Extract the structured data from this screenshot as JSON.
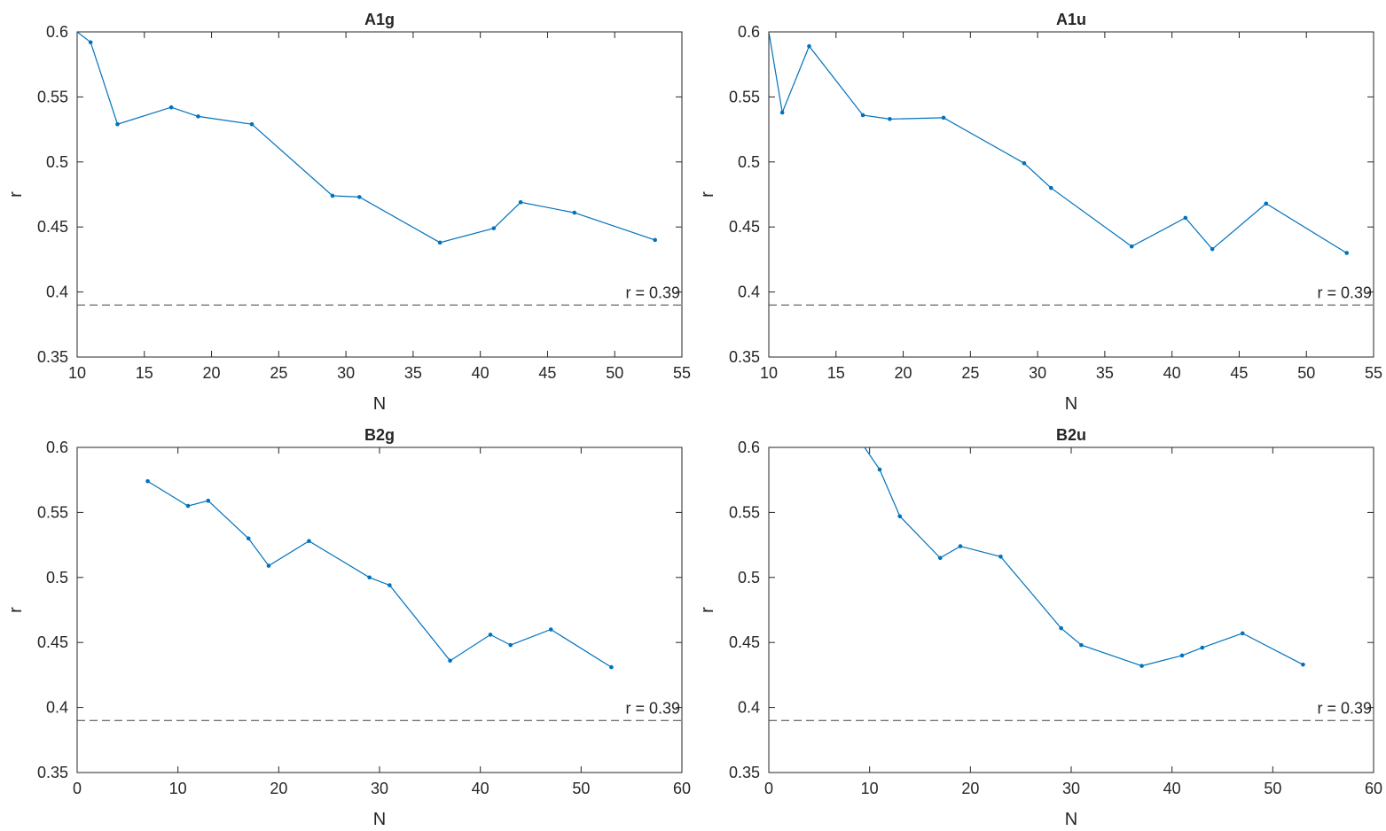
{
  "style": {
    "series_color": "#0072BD",
    "ref_line_color": "#404040"
  },
  "chart_data": [
    {
      "type": "line",
      "title": "A1g",
      "xlabel": "N",
      "ylabel": "r",
      "xlim": [
        10,
        55
      ],
      "ylim": [
        0.35,
        0.6
      ],
      "xticks": [
        10,
        15,
        20,
        25,
        30,
        35,
        40,
        45,
        50,
        55
      ],
      "yticks": [
        0.35,
        0.4,
        0.45,
        0.5,
        0.55,
        0.6
      ],
      "ytick_labels": [
        "0.35",
        "0.4",
        "0.45",
        "0.5",
        "0.55",
        "0.6"
      ],
      "grid": false,
      "x": [
        10,
        11,
        13,
        17,
        19,
        23,
        29,
        31,
        37,
        41,
        43,
        47,
        53
      ],
      "y": [
        0.6,
        0.592,
        0.529,
        0.542,
        0.535,
        0.529,
        0.474,
        0.473,
        0.438,
        0.449,
        0.469,
        0.461,
        0.44
      ],
      "markers": [
        false,
        true,
        true,
        true,
        true,
        true,
        true,
        true,
        true,
        true,
        true,
        true,
        true
      ],
      "reference_line": {
        "y": 0.39,
        "label": "r = 0.39"
      }
    },
    {
      "type": "line",
      "title": "A1u",
      "xlabel": "N",
      "ylabel": "r",
      "xlim": [
        10,
        55
      ],
      "ylim": [
        0.35,
        0.6
      ],
      "xticks": [
        10,
        15,
        20,
        25,
        30,
        35,
        40,
        45,
        50,
        55
      ],
      "yticks": [
        0.35,
        0.4,
        0.45,
        0.5,
        0.55,
        0.6
      ],
      "ytick_labels": [
        "0.35",
        "0.4",
        "0.45",
        "0.5",
        "0.55",
        "0.6"
      ],
      "grid": false,
      "x": [
        10,
        11,
        13,
        17,
        19,
        23,
        29,
        31,
        37,
        41,
        43,
        47,
        53
      ],
      "y": [
        0.6,
        0.538,
        0.589,
        0.536,
        0.533,
        0.534,
        0.499,
        0.48,
        0.435,
        0.457,
        0.433,
        0.468,
        0.43
      ],
      "markers": [
        false,
        true,
        true,
        true,
        true,
        true,
        true,
        true,
        true,
        true,
        true,
        true,
        true
      ],
      "reference_line": {
        "y": 0.39,
        "label": "r = 0.39"
      }
    },
    {
      "type": "line",
      "title": "B2g",
      "xlabel": "N",
      "ylabel": "r",
      "xlim": [
        0,
        60
      ],
      "ylim": [
        0.35,
        0.6
      ],
      "xticks": [
        0,
        10,
        20,
        30,
        40,
        50,
        60
      ],
      "yticks": [
        0.35,
        0.4,
        0.45,
        0.5,
        0.55,
        0.6
      ],
      "ytick_labels": [
        "0.35",
        "0.4",
        "0.45",
        "0.5",
        "0.55",
        "0.6"
      ],
      "grid": false,
      "x": [
        7,
        11,
        13,
        17,
        19,
        23,
        29,
        31,
        37,
        41,
        43,
        47,
        53
      ],
      "y": [
        0.574,
        0.555,
        0.559,
        0.53,
        0.509,
        0.528,
        0.5,
        0.494,
        0.436,
        0.456,
        0.448,
        0.46,
        0.431
      ],
      "markers": [
        true,
        true,
        true,
        true,
        true,
        true,
        true,
        true,
        true,
        true,
        true,
        true,
        true
      ],
      "reference_line": {
        "y": 0.39,
        "label": "r = 0.39"
      }
    },
    {
      "type": "line",
      "title": "B2u",
      "xlabel": "N",
      "ylabel": "r",
      "xlim": [
        0,
        60
      ],
      "ylim": [
        0.35,
        0.6
      ],
      "xticks": [
        0,
        10,
        20,
        30,
        40,
        50,
        60
      ],
      "yticks": [
        0.35,
        0.4,
        0.45,
        0.5,
        0.55,
        0.6
      ],
      "ytick_labels": [
        "0.35",
        "0.4",
        "0.45",
        "0.5",
        "0.55",
        "0.6"
      ],
      "grid": false,
      "x": [
        9.5,
        11,
        13,
        17,
        19,
        23,
        29,
        31,
        37,
        41,
        43,
        47,
        53
      ],
      "y": [
        0.6,
        0.583,
        0.547,
        0.515,
        0.524,
        0.516,
        0.461,
        0.448,
        0.432,
        0.44,
        0.446,
        0.457,
        0.433
      ],
      "markers": [
        false,
        true,
        true,
        true,
        true,
        true,
        true,
        true,
        true,
        true,
        true,
        true,
        true
      ],
      "reference_line": {
        "y": 0.39,
        "label": "r = 0.39"
      }
    }
  ]
}
